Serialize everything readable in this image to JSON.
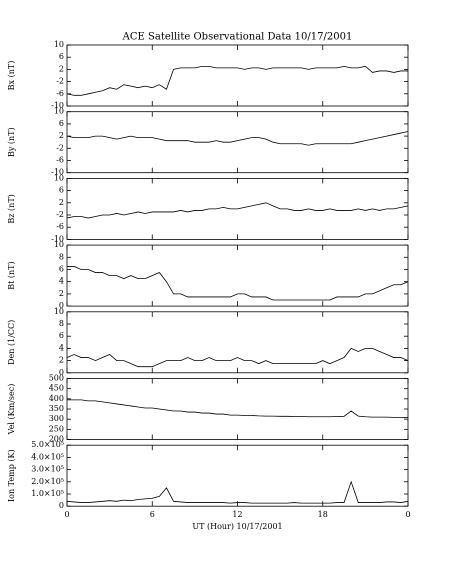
{
  "chart_data": [
    {
      "type": "line",
      "title": "ACE Satellite Observational Data   10/17/2001",
      "ylabel": "Bx (nT)",
      "color": "#000000",
      "grid": false,
      "xlim": [
        0,
        24
      ],
      "xticks": [
        0,
        6,
        12,
        18,
        {
          "value": 24,
          "label": "0"
        }
      ],
      "ylim": [
        -10,
        10
      ],
      "yticks": [
        -10,
        -6,
        -2,
        2,
        6,
        10
      ],
      "x": [
        0,
        0.5,
        1,
        1.5,
        2,
        2.5,
        3,
        3.5,
        4,
        4.5,
        5,
        5.5,
        6,
        6.5,
        7,
        7.5,
        8,
        8.5,
        9,
        9.5,
        10,
        10.5,
        11,
        11.5,
        12,
        12.5,
        13,
        13.5,
        14,
        14.5,
        15,
        15.5,
        16,
        16.5,
        17,
        17.5,
        18,
        18.5,
        19,
        19.5,
        20,
        20.5,
        21,
        21.5,
        22,
        22.5,
        23,
        23.5,
        24
      ],
      "values": [
        -6,
        -6.5,
        -6.5,
        -6,
        -5.5,
        -5,
        -4,
        -4.5,
        -3,
        -3.5,
        -4,
        -3.5,
        -4,
        -3,
        -4.5,
        2,
        2.5,
        2.5,
        2.5,
        3,
        3,
        2.5,
        2.5,
        2.5,
        2.5,
        2,
        2.5,
        2.5,
        2,
        2.5,
        2.5,
        2.5,
        2.5,
        2.5,
        2,
        2.5,
        2.5,
        2.5,
        2.5,
        3,
        2.5,
        2.5,
        3,
        1,
        1.5,
        1.5,
        1,
        1.5,
        1.5
      ]
    },
    {
      "type": "line",
      "ylabel": "By (nT)",
      "color": "#000000",
      "grid": false,
      "xlim": [
        0,
        24
      ],
      "xticks": [
        0,
        6,
        12,
        18,
        {
          "value": 24,
          "label": "0"
        }
      ],
      "ylim": [
        -10,
        10
      ],
      "yticks": [
        -10,
        -6,
        -2,
        2,
        6,
        10
      ],
      "x": [
        0,
        0.5,
        1,
        1.5,
        2,
        2.5,
        3,
        3.5,
        4,
        4.5,
        5,
        5.5,
        6,
        6.5,
        7,
        7.5,
        8,
        8.5,
        9,
        9.5,
        10,
        10.5,
        11,
        11.5,
        12,
        12.5,
        13,
        13.5,
        14,
        14.5,
        15,
        15.5,
        16,
        16.5,
        17,
        17.5,
        18,
        18.5,
        19,
        19.5,
        20,
        20.5,
        21,
        21.5,
        22,
        22.5,
        23,
        23.5,
        24
      ],
      "values": [
        2,
        1.5,
        1.5,
        1.5,
        2,
        2,
        1.5,
        1,
        1.5,
        2,
        1.5,
        1.5,
        1.5,
        1,
        0.5,
        0.5,
        0.5,
        0.5,
        0,
        0,
        0,
        0.5,
        0,
        0,
        0.5,
        1,
        1.5,
        1.5,
        1,
        0,
        -0.5,
        -0.5,
        -0.5,
        -0.5,
        -1,
        -0.5,
        -0.5,
        -0.5,
        -0.5,
        -0.5,
        -0.5,
        0,
        0.5,
        1,
        1.5,
        2,
        2.5,
        3,
        3.5
      ]
    },
    {
      "type": "line",
      "ylabel": "Bz (nT)",
      "color": "#000000",
      "grid": false,
      "xlim": [
        0,
        24
      ],
      "xticks": [
        0,
        6,
        12,
        18,
        {
          "value": 24,
          "label": "0"
        }
      ],
      "ylim": [
        -10,
        10
      ],
      "yticks": [
        -10,
        -6,
        -2,
        2,
        6,
        10
      ],
      "x": [
        0,
        0.5,
        1,
        1.5,
        2,
        2.5,
        3,
        3.5,
        4,
        4.5,
        5,
        5.5,
        6,
        6.5,
        7,
        7.5,
        8,
        8.5,
        9,
        9.5,
        10,
        10.5,
        11,
        11.5,
        12,
        12.5,
        13,
        13.5,
        14,
        14.5,
        15,
        15.5,
        16,
        16.5,
        17,
        17.5,
        18,
        18.5,
        19,
        19.5,
        20,
        20.5,
        21,
        21.5,
        22,
        22.5,
        23,
        23.5,
        24
      ],
      "values": [
        -3,
        -2.5,
        -2.5,
        -3,
        -2.5,
        -2,
        -2,
        -1.5,
        -2,
        -1.5,
        -1,
        -1.5,
        -1,
        -1,
        -1,
        -1,
        -0.5,
        -1,
        -0.5,
        -0.5,
        0,
        0,
        0.5,
        0,
        0,
        0.5,
        1,
        1.5,
        2,
        1,
        0,
        0,
        -0.5,
        -0.5,
        0,
        -0.5,
        -0.5,
        0,
        -0.5,
        -0.5,
        -0.5,
        0,
        -0.5,
        0,
        -0.5,
        0,
        0,
        0.5,
        1
      ]
    },
    {
      "type": "line",
      "ylabel": "Bt (nT)",
      "color": "#000000",
      "grid": false,
      "xlim": [
        0,
        24
      ],
      "xticks": [
        0,
        6,
        12,
        18,
        {
          "value": 24,
          "label": "0"
        }
      ],
      "ylim": [
        0,
        10
      ],
      "yticks": [
        0,
        2,
        4,
        6,
        8,
        10
      ],
      "x": [
        0,
        0.5,
        1,
        1.5,
        2,
        2.5,
        3,
        3.5,
        4,
        4.5,
        5,
        5.5,
        6,
        6.5,
        7,
        7.5,
        8,
        8.5,
        9,
        9.5,
        10,
        10.5,
        11,
        11.5,
        12,
        12.5,
        13,
        13.5,
        14,
        14.5,
        15,
        15.5,
        16,
        16.5,
        17,
        17.5,
        18,
        18.5,
        19,
        19.5,
        20,
        20.5,
        21,
        21.5,
        22,
        22.5,
        23,
        23.5,
        24
      ],
      "values": [
        6.5,
        6.5,
        6,
        6,
        5.5,
        5.5,
        5,
        5,
        4.5,
        5,
        4.5,
        4.5,
        5,
        5.5,
        4,
        2,
        2,
        1.5,
        1.5,
        1.5,
        1.5,
        1.5,
        1.5,
        1.5,
        2,
        2,
        1.5,
        1.5,
        1.5,
        1,
        1,
        1,
        1,
        1,
        1,
        1,
        1,
        1,
        1.5,
        1.5,
        1.5,
        1.5,
        2,
        2,
        2.5,
        3,
        3.5,
        3.5,
        4
      ]
    },
    {
      "type": "line",
      "ylabel": "Den (1/CC)",
      "color": "#000000",
      "grid": false,
      "xlim": [
        0,
        24
      ],
      "xticks": [
        0,
        6,
        12,
        18,
        {
          "value": 24,
          "label": "0"
        }
      ],
      "ylim": [
        0,
        10
      ],
      "yticks": [
        0,
        2,
        4,
        6,
        8,
        10
      ],
      "x": [
        0,
        0.5,
        1,
        1.5,
        2,
        2.5,
        3,
        3.5,
        4,
        4.5,
        5,
        5.5,
        6,
        6.5,
        7,
        7.5,
        8,
        8.5,
        9,
        9.5,
        10,
        10.5,
        11,
        11.5,
        12,
        12.5,
        13,
        13.5,
        14,
        14.5,
        15,
        15.5,
        16,
        16.5,
        17,
        17.5,
        18,
        18.5,
        19,
        19.5,
        20,
        20.5,
        21,
        21.5,
        22,
        22.5,
        23,
        23.5,
        24
      ],
      "values": [
        2.5,
        3,
        2.5,
        2.5,
        2,
        2.5,
        3,
        2,
        2,
        1.5,
        1,
        1,
        1,
        1.5,
        2,
        2,
        2,
        2.5,
        2,
        2,
        2.5,
        2,
        2,
        2,
        2.5,
        2,
        2,
        1.5,
        2,
        1.5,
        1.5,
        1.5,
        1.5,
        1.5,
        1.5,
        1.5,
        2,
        1.5,
        2,
        2.5,
        4,
        3.5,
        4,
        4,
        3.5,
        3,
        2.5,
        2.5,
        2
      ]
    },
    {
      "type": "line",
      "ylabel": "Vel (Km/sec)",
      "color": "#000000",
      "grid": false,
      "xlim": [
        0,
        24
      ],
      "xticks": [
        0,
        6,
        12,
        18,
        {
          "value": 24,
          "label": "0"
        }
      ],
      "ylim": [
        200,
        500
      ],
      "yticks": [
        200,
        250,
        300,
        350,
        400,
        450,
        500
      ],
      "x": [
        0,
        0.5,
        1,
        1.5,
        2,
        2.5,
        3,
        3.5,
        4,
        4.5,
        5,
        5.5,
        6,
        6.5,
        7,
        7.5,
        8,
        8.5,
        9,
        9.5,
        10,
        10.5,
        11,
        11.5,
        12,
        12.5,
        13,
        13.5,
        14,
        14.5,
        15,
        15.5,
        16,
        16.5,
        17,
        17.5,
        18,
        18.5,
        19,
        19.5,
        20,
        20.5,
        21,
        21.5,
        22,
        22.5,
        23,
        23.5,
        24
      ],
      "values": [
        395,
        395,
        395,
        390,
        390,
        385,
        380,
        375,
        370,
        365,
        360,
        355,
        355,
        350,
        345,
        340,
        340,
        335,
        335,
        330,
        330,
        325,
        325,
        320,
        320,
        318,
        318,
        316,
        315,
        315,
        314,
        314,
        313,
        313,
        312,
        312,
        312,
        312,
        313,
        314,
        340,
        315,
        312,
        310,
        310,
        310,
        309,
        309,
        308
      ]
    },
    {
      "type": "line",
      "ylabel": "Ion Temp (K)",
      "xlabel": "UT (Hour)   10/17/2001",
      "color": "#000000",
      "grid": false,
      "xlim": [
        0,
        24
      ],
      "xticks": [
        0,
        6,
        12,
        18,
        {
          "value": 24,
          "label": "0"
        }
      ],
      "ylim": [
        0,
        500000
      ],
      "yticks": [
        0,
        {
          "value": 100000,
          "label": "1.0×10⁵"
        },
        {
          "value": 200000,
          "label": "2.0×10⁵"
        },
        {
          "value": 300000,
          "label": "3.0×10⁵"
        },
        {
          "value": 400000,
          "label": "4.0×10⁵"
        },
        {
          "value": 500000,
          "label": "5.0×10⁵"
        }
      ],
      "x": [
        0,
        0.5,
        1,
        1.5,
        2,
        2.5,
        3,
        3.5,
        4,
        4.5,
        5,
        5.5,
        6,
        6.5,
        7,
        7.5,
        8,
        8.5,
        9,
        9.5,
        10,
        10.5,
        11,
        11.5,
        12,
        12.5,
        13,
        13.5,
        14,
        14.5,
        15,
        15.5,
        16,
        16.5,
        17,
        17.5,
        18,
        18.5,
        19,
        19.5,
        20,
        20.5,
        21,
        21.5,
        22,
        22.5,
        23,
        23.5,
        24
      ],
      "values": [
        40000,
        35000,
        30000,
        30000,
        35000,
        40000,
        45000,
        40000,
        50000,
        45000,
        55000,
        60000,
        65000,
        80000,
        150000,
        40000,
        35000,
        30000,
        30000,
        30000,
        30000,
        30000,
        30000,
        25000,
        30000,
        30000,
        25000,
        25000,
        25000,
        25000,
        25000,
        25000,
        30000,
        25000,
        25000,
        25000,
        25000,
        25000,
        30000,
        30000,
        200000,
        30000,
        30000,
        30000,
        30000,
        35000,
        35000,
        30000,
        40000
      ]
    }
  ]
}
